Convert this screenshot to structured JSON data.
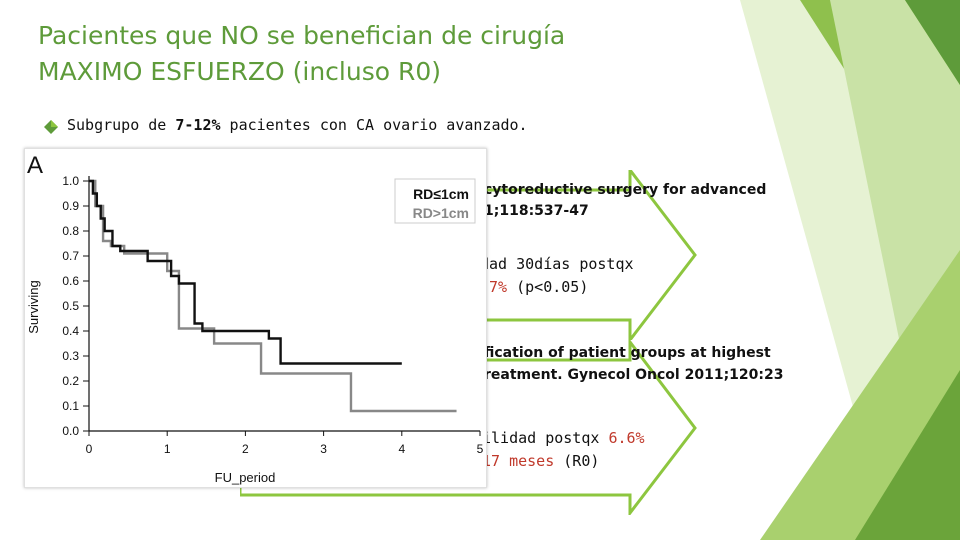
{
  "slide": {
    "title_line1": "Pacientes que NO se benefician de cirugía",
    "title_line2": "MAXIMO ESFUERZO (incluso R0)",
    "bullet_prefix": "Subgrupo de ",
    "bullet_bold": "7-12%",
    "bullet_suffix": " pacientes con CA ovario avanzado.",
    "ref1_line1": "cytoreductive surgery for advanced",
    "ref1_line2": "1;118:537-47",
    "point1_line1": "dad 30días postqx",
    "point1_red": ".7%",
    "point1_rest": " (p<0.05)",
    "ref2_line1": "fication of patient groups at highest",
    "ref2_line2": "reatment. Gynecol Oncol 2011;120:23",
    "point2_line1_a": "ilidad postqx ",
    "point2_line1_red": "6.6%",
    "point2_line2_a": "",
    "point2_line2_red": "17 meses",
    "point2_line2_b": " (R0)",
    "colors": {
      "title": "#5e9b3a",
      "accent_red": "#c0392b",
      "arrow": "#8dc63f"
    }
  },
  "chart_data": {
    "type": "line",
    "panel_label": "A",
    "xlabel": "FU_period",
    "ylabel": "Surviving",
    "xlim": [
      0,
      5
    ],
    "ylim": [
      0,
      1
    ],
    "x_ticks": [
      "0",
      "1",
      "2",
      "3",
      "4",
      "5"
    ],
    "y_ticks": [
      "0.0",
      "0.1",
      "0.2",
      "0.3",
      "0.4",
      "0.5",
      "0.6",
      "0.7",
      "0.8",
      "0.9",
      "1.0"
    ],
    "legend": [
      "RD≤1cm",
      "RD>1cm"
    ],
    "series": [
      {
        "name": "RD≤1cm",
        "color": "#111111",
        "x": [
          0,
          0.05,
          0.1,
          0.15,
          0.2,
          0.3,
          0.4,
          0.75,
          1.05,
          1.15,
          1.35,
          1.45,
          2.3,
          2.45,
          4.0
        ],
        "y": [
          1.0,
          0.95,
          0.9,
          0.85,
          0.8,
          0.74,
          0.72,
          0.68,
          0.62,
          0.59,
          0.43,
          0.4,
          0.37,
          0.27,
          0.27
        ]
      },
      {
        "name": "RD>1cm",
        "color": "#888888",
        "x": [
          0,
          0.08,
          0.18,
          0.28,
          0.45,
          1.0,
          1.15,
          1.5,
          1.6,
          2.05,
          2.2,
          3.35,
          4.7
        ],
        "y": [
          1.0,
          0.9,
          0.76,
          0.74,
          0.71,
          0.64,
          0.41,
          0.41,
          0.35,
          0.35,
          0.23,
          0.08,
          0.08
        ]
      }
    ]
  }
}
